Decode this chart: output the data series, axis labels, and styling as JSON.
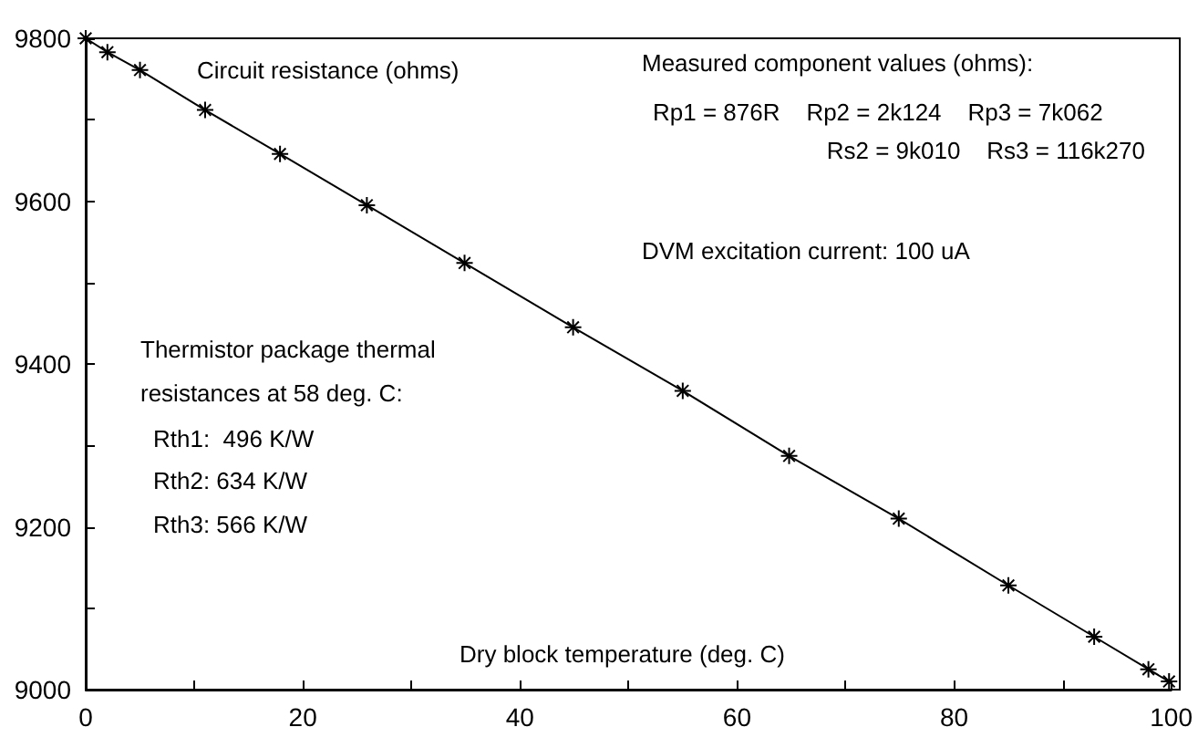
{
  "chart_data": {
    "type": "line",
    "xlabel": "Dry block temperature (deg. C)",
    "ylabel": "Circuit resistance (ohms)",
    "x": [
      0,
      2,
      5,
      11,
      17.9,
      25.9,
      34.9,
      44.9,
      55,
      64.8,
      74.9,
      85,
      92.9,
      97.9,
      99.8
    ],
    "series": [
      {
        "color": "#000000",
        "values": [
          9800,
          9783,
          9761,
          9712,
          9658,
          9595,
          9524,
          9445,
          9367,
          9287,
          9210,
          9128,
          9065,
          9025,
          9010
        ]
      }
    ],
    "xlim": [
      0,
      100
    ],
    "ylim": [
      9000,
      9800
    ],
    "xticks": [
      0,
      {
        "value": 10,
        "label": null
      },
      20,
      {
        "value": 30,
        "label": null
      },
      40,
      {
        "value": 50,
        "label": null
      },
      60,
      {
        "value": 70,
        "label": null
      },
      80,
      {
        "value": 90,
        "label": null
      },
      100
    ],
    "yticks": [
      9000,
      {
        "value": 9100,
        "label": null
      },
      9200,
      {
        "value": 9300,
        "label": null
      },
      9400,
      {
        "value": 9500,
        "label": null
      },
      9600,
      {
        "value": 9700,
        "label": null
      },
      9800
    ],
    "marker": "cross",
    "line_style": "solid",
    "grid": false,
    "annotations": [
      "Measured component values (ohms):",
      "Rp1 = 876R    Rp2 = 2k124    Rp3 = 7k062",
      "Rs2 = 9k010    Rs3 = 116k270",
      "DVM excitation current: 100 uA",
      "Thermistor package thermal",
      "resistances at 58 deg. C:",
      "Rth1:  496 K/W",
      "Rth2: 634 K/W",
      "Rth3: 566 K/W"
    ]
  }
}
